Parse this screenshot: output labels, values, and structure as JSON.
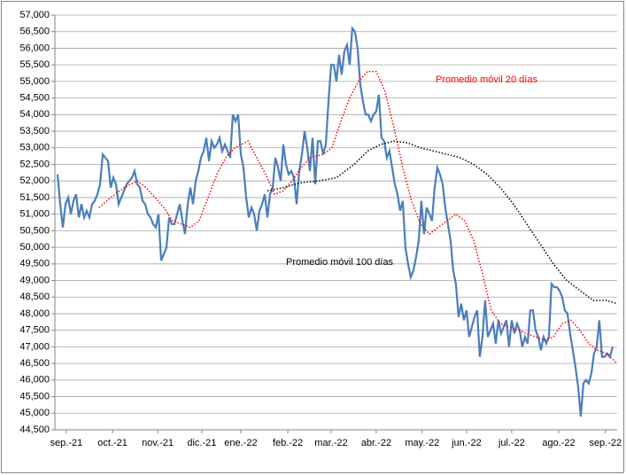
{
  "chart_data": {
    "type": "line",
    "xlim": [
      -1,
      210.7
    ],
    "xticks": [
      {
        "value": 3.3,
        "label": "sep.-21"
      },
      {
        "value": 20.7,
        "label": "oct.-21"
      },
      {
        "value": 37.7,
        "label": "nov.-21"
      },
      {
        "value": 54.3,
        "label": "dic.-21"
      },
      {
        "value": 69,
        "label": "ene.-22"
      },
      {
        "value": 86.7,
        "label": "feb.-22"
      },
      {
        "value": 103,
        "label": "mar.-22"
      },
      {
        "value": 120,
        "label": "abr.-22"
      },
      {
        "value": 137.3,
        "label": "may.-22"
      },
      {
        "value": 154,
        "label": "jun.-22"
      },
      {
        "value": 171,
        "label": "jul.-22"
      },
      {
        "value": 188.7,
        "label": "ago.-22"
      },
      {
        "value": 206.3,
        "label": "sep.-22"
      }
    ],
    "ylim": [
      44500,
      57000
    ],
    "yticks": [
      {
        "value": 44500,
        "label": "44,500"
      },
      {
        "value": 45000,
        "label": "45,000"
      },
      {
        "value": 45500,
        "label": "45,500"
      },
      {
        "value": 46000,
        "label": "46,000"
      },
      {
        "value": 46500,
        "label": "46,500"
      },
      {
        "value": 47000,
        "label": "47,000"
      },
      {
        "value": 47500,
        "label": "47,500"
      },
      {
        "value": 48000,
        "label": "48,000"
      },
      {
        "value": 48500,
        "label": "48,500"
      },
      {
        "value": 49000,
        "label": "49,000"
      },
      {
        "value": 49500,
        "label": "49,500"
      },
      {
        "value": 50000,
        "label": "50,000"
      },
      {
        "value": 50500,
        "label": "50,500"
      },
      {
        "value": 51000,
        "label": "51,000"
      },
      {
        "value": 51500,
        "label": "51,500"
      },
      {
        "value": 52000,
        "label": "52,000"
      },
      {
        "value": 52500,
        "label": "52,500"
      },
      {
        "value": 53000,
        "label": "53,000"
      },
      {
        "value": 53500,
        "label": "53,500"
      },
      {
        "value": 54000,
        "label": "54,000"
      },
      {
        "value": 54500,
        "label": "54,500"
      },
      {
        "value": 55000,
        "label": "55,000"
      },
      {
        "value": 55500,
        "label": "55,500"
      },
      {
        "value": 56000,
        "label": "56,000"
      },
      {
        "value": 56500,
        "label": "56,500"
      },
      {
        "value": 57000,
        "label": "57,000"
      }
    ],
    "grid": true,
    "series": [
      {
        "color": "#4a7ebb",
        "line_style": "solid",
        "x": [
          0,
          1,
          2,
          3,
          4,
          5,
          6,
          7,
          8,
          9,
          10,
          11,
          12,
          13,
          14,
          15,
          16,
          17,
          18,
          19,
          20,
          21,
          22,
          23,
          24,
          25,
          26,
          27,
          28,
          29,
          30,
          31,
          32,
          33,
          34,
          35,
          36,
          37,
          38,
          39,
          40,
          41,
          42,
          43,
          44,
          45,
          46,
          47,
          48,
          49,
          50,
          51,
          52,
          53,
          54,
          55,
          56,
          57,
          58,
          59,
          60,
          61,
          62,
          63,
          64,
          65,
          66,
          67,
          68,
          69,
          70,
          71,
          72,
          73,
          74,
          75,
          76,
          77,
          78,
          79,
          80,
          81,
          82,
          83,
          84,
          85,
          86,
          87,
          88,
          89,
          90,
          91,
          92,
          93,
          94,
          95,
          96,
          97,
          98,
          99,
          100,
          101,
          102,
          103,
          104,
          105,
          106,
          107,
          108,
          109,
          110,
          111,
          112,
          113,
          114,
          115,
          116,
          117,
          118,
          119,
          120,
          121,
          122,
          123,
          124,
          125,
          126,
          127,
          128,
          129,
          130,
          131,
          132,
          133,
          134,
          135,
          136,
          137,
          138,
          139,
          140,
          141,
          142,
          143,
          144,
          145,
          146,
          147,
          148,
          149,
          150,
          151,
          152,
          153,
          154,
          155,
          156,
          157,
          158,
          159,
          160,
          161,
          162,
          163,
          164,
          165,
          166,
          167,
          168,
          169,
          170,
          171,
          172,
          173,
          174,
          175,
          176,
          177,
          178,
          179,
          180,
          181,
          182,
          183,
          184,
          185,
          186,
          187,
          188,
          189,
          190,
          191,
          192,
          193,
          194,
          195,
          196,
          197,
          198,
          199,
          200,
          201,
          202,
          203,
          204,
          205,
          206,
          207,
          208,
          209
        ],
        "values": [
          52200,
          51300,
          50600,
          51300,
          51500,
          51000,
          51400,
          51600,
          50900,
          51300,
          50900,
          51100,
          50900,
          51300,
          51400,
          51600,
          51900,
          52800,
          52700,
          52600,
          51800,
          52100,
          51900,
          51300,
          51500,
          51700,
          51900,
          52000,
          52100,
          52300,
          51900,
          51800,
          51400,
          51300,
          51000,
          50900,
          50700,
          50600,
          51000,
          49600,
          49800,
          50000,
          50900,
          50700,
          50700,
          51000,
          51300,
          50800,
          50400,
          51300,
          51800,
          51300,
          52000,
          52300,
          52700,
          52900,
          53300,
          52600,
          53200,
          53000,
          53100,
          53300,
          52900,
          53100,
          52900,
          52700,
          54000,
          53800,
          54000,
          52800,
          52400,
          51500,
          50900,
          51200,
          51000,
          50500,
          51100,
          51300,
          51600,
          50900,
          51600,
          51800,
          52700,
          52400,
          52000,
          53100,
          52500,
          52200,
          52300,
          52100,
          51300,
          52300,
          52800,
          53500,
          53000,
          52300,
          53300,
          51900,
          53200,
          53200,
          52800,
          53100,
          54400,
          55500,
          55500,
          55000,
          55800,
          55200,
          55900,
          56100,
          55500,
          56600,
          56500,
          56000,
          54900,
          54400,
          54000,
          54000,
          53800,
          54000,
          54100,
          54600,
          53300,
          53200,
          52700,
          52900,
          52400,
          51900,
          51600,
          51100,
          51400,
          50000,
          49500,
          49100,
          49300,
          49700,
          50200,
          51400,
          50400,
          51200,
          51000,
          50800,
          51800,
          52400,
          52200,
          51900,
          51200,
          50700,
          50200,
          49300,
          48900,
          47900,
          48300,
          47800,
          48100,
          47300,
          47600,
          47900,
          48100,
          46700,
          47300,
          48400,
          47300,
          47500,
          47700,
          47100,
          47800,
          47400,
          47600,
          47800,
          47000,
          47800,
          47400,
          47700,
          47500,
          47000,
          47300,
          47100,
          48100,
          48100,
          47500,
          47300,
          46900,
          47300,
          47100,
          47300,
          48900,
          48800,
          48800,
          48700,
          48500,
          48100,
          48000,
          47400,
          46900,
          46400,
          45800,
          44900,
          45900,
          46000,
          45900,
          46200,
          46800,
          47000,
          47800,
          46700,
          46700,
          46800,
          46700,
          47000
        ]
      },
      {
        "name": "Promedio móvil 20 días",
        "color": "#ff0000",
        "line_style": "dotted",
        "x": [
          15.7,
          20,
          25,
          30,
          33.3,
          36.7,
          40,
          43.3,
          46.7,
          50,
          53.3,
          56.7,
          60,
          63.3,
          66.7,
          71.7,
          75,
          78.3,
          81.7,
          85,
          88.3,
          91.7,
          95,
          100,
          103.3,
          106.7,
          110,
          113.3,
          116.7,
          120,
          123.3,
          126.7,
          130,
          133.3,
          136.7,
          140,
          143.3,
          146.7,
          150,
          153.3,
          156.7,
          160,
          163.3,
          166.7,
          170,
          173.3,
          176.7,
          180,
          183.3,
          186.7,
          190,
          193.3,
          196.7,
          200,
          203.3,
          206.7,
          210.7
        ],
        "values": [
          51200,
          51500,
          51800,
          52000,
          51800,
          51500,
          51200,
          50800,
          50700,
          50600,
          50800,
          51500,
          52200,
          52700,
          53000,
          53200,
          52700,
          52200,
          51600,
          51700,
          52000,
          52400,
          52700,
          52800,
          53000,
          53800,
          54500,
          55000,
          55300,
          55300,
          54700,
          53600,
          52400,
          51400,
          50700,
          50400,
          50600,
          50800,
          51000,
          50800,
          50200,
          49200,
          48100,
          47700,
          47600,
          47500,
          47400,
          47300,
          47200,
          47300,
          47700,
          47800,
          47500,
          47100,
          46900,
          46800,
          46500
        ]
      },
      {
        "name": "Promedio móvil 100 días",
        "color": "#000000",
        "line_style": "dotted",
        "x": [
          79,
          85,
          91.7,
          98.3,
          105,
          111.7,
          116.7,
          121.7,
          126.7,
          131.7,
          136.7,
          141.7,
          146.7,
          151.7,
          156.7,
          161.7,
          166.7,
          171.7,
          176.7,
          181.7,
          186.7,
          191.7,
          196.7,
          201.7,
          206.7,
          210.7
        ],
        "values": [
          51700,
          51800,
          51950,
          52000,
          52100,
          52500,
          52900,
          53100,
          53200,
          53150,
          53000,
          52900,
          52800,
          52700,
          52500,
          52200,
          51800,
          51300,
          50700,
          50100,
          49500,
          49000,
          48700,
          48400,
          48400,
          48300
        ]
      }
    ]
  }
}
